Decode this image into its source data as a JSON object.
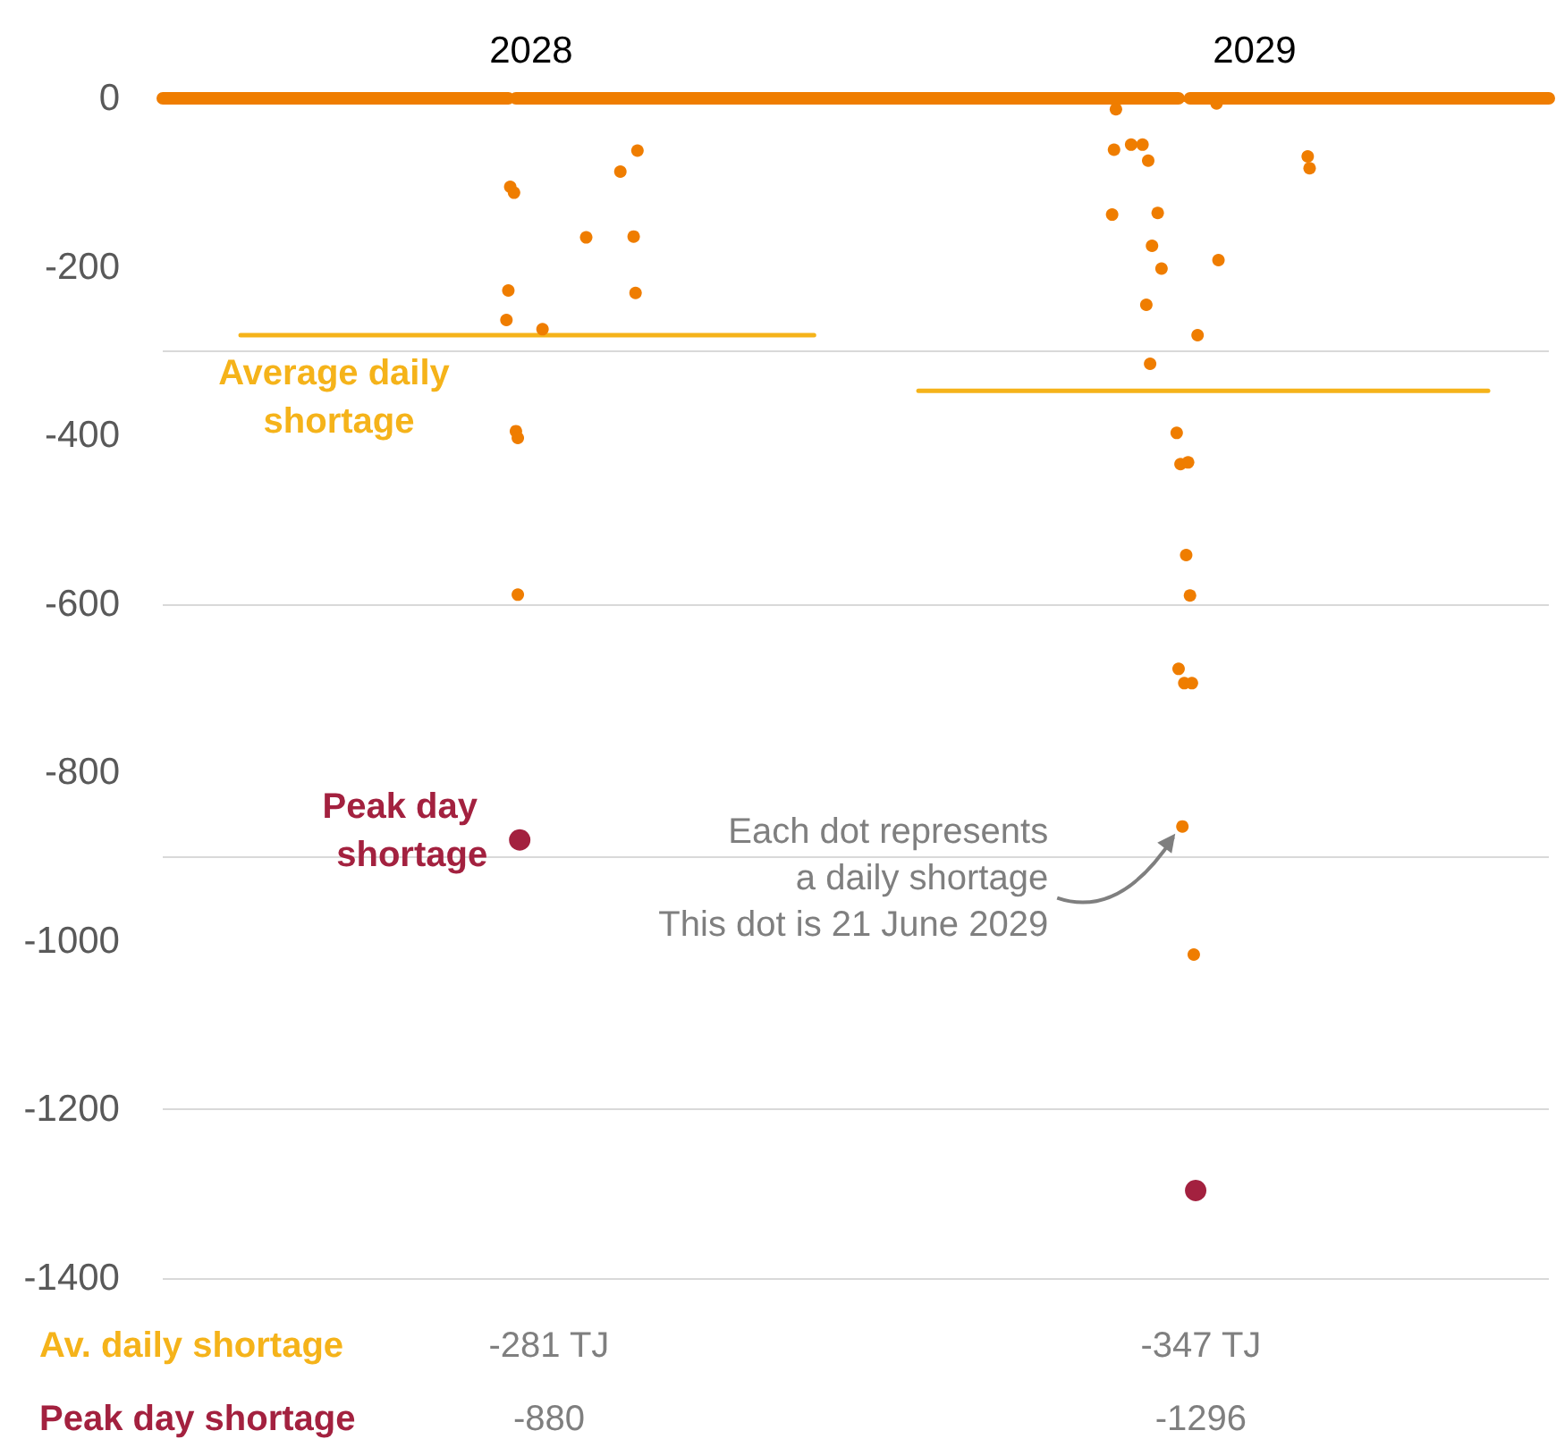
{
  "chart_data": {
    "type": "scatter",
    "xlim": [
      "2028-01-01",
      "2029-12-31"
    ],
    "xticks": [
      {
        "value": "2028-07-13",
        "label": "2028"
      },
      {
        "value": "2029-07-29",
        "label": "2029"
      }
    ],
    "ylim": [
      -1400,
      0
    ],
    "yticks": [
      0,
      -200,
      -400,
      -600,
      -800,
      -1000,
      -1200,
      -1400
    ],
    "grid": "y",
    "legend": false,
    "series": [
      {
        "type": "line",
        "color": "#ef7d00",
        "x": [
          "2028-01-01",
          "2028-07-01",
          "2028-07-03",
          "2028-07-05",
          "2029-06-19",
          "2029-06-22",
          "2029-06-25",
          "2029-12-31"
        ],
        "values": [
          0,
          0,
          null,
          0,
          0,
          null,
          0,
          0
        ]
      },
      {
        "marker": "circle",
        "color": "#ef7d00",
        "x": [
          "2028-09-07",
          "2028-08-29",
          "2028-07-02",
          "2028-07-04",
          "2028-08-11",
          "2028-09-05",
          "2028-07-01",
          "2028-09-06",
          "2028-06-30",
          "2028-07-19",
          "2028-07-05",
          "2028-07-06",
          "2028-07-06",
          "2029-05-17",
          "2029-07-09",
          "2029-05-16",
          "2029-05-25",
          "2029-05-31",
          "2029-06-03",
          "2029-08-26",
          "2029-08-27",
          "2029-05-15",
          "2029-06-08",
          "2029-06-05",
          "2029-06-10",
          "2029-07-10",
          "2029-06-02",
          "2029-06-29",
          "2029-06-04",
          "2029-06-18",
          "2029-06-20",
          "2029-06-24",
          "2029-06-23",
          "2029-06-25",
          "2029-06-19",
          "2029-06-22",
          "2029-06-26",
          "2029-06-21",
          "2029-06-27"
        ],
        "values": [
          -62,
          -87,
          -105,
          -112,
          -165,
          -164,
          -228,
          -231,
          -263,
          -274,
          -395,
          -403,
          -589,
          -13,
          -6,
          -61,
          -55,
          -55,
          -74,
          -69,
          -83,
          -138,
          -136,
          -175,
          -202,
          -192,
          -245,
          -281,
          -315,
          -397,
          -434,
          -432,
          -542,
          -590,
          -677,
          -694,
          -694,
          -864,
          -1016
        ]
      },
      {
        "type": "line",
        "name": "Average daily shortage",
        "color": "#f5b31a",
        "x": [
          "2028-02-11",
          "2028-12-09",
          "2029-01-01",
          "2029-02-02",
          "2029-11-29"
        ],
        "values": [
          -281,
          -281,
          null,
          -347,
          -347
        ]
      },
      {
        "marker": "circle",
        "name": "Peak day shortage",
        "color": "#a3213f",
        "x": [
          "2028-07-07",
          "2029-06-28"
        ],
        "values": [
          -880,
          -1296
        ]
      }
    ],
    "annotations": [
      {
        "text": "Each dot represents\na daily shortage\nThis dot is 21 June 2029",
        "x": "2029-06-21",
        "y": -864
      },
      "Av. daily shortage",
      "-281 TJ",
      "-347 TJ",
      "Peak day shortage",
      "-880",
      "-1296"
    ]
  }
}
